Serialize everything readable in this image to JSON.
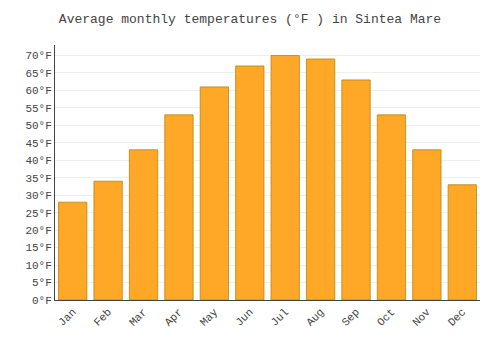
{
  "chart_data": {
    "type": "bar",
    "title": "Average monthly temperatures (°F ) in Sintea Mare",
    "categories": [
      "Jan",
      "Feb",
      "Mar",
      "Apr",
      "May",
      "Jun",
      "Jul",
      "Aug",
      "Sep",
      "Oct",
      "Nov",
      "Dec"
    ],
    "values": [
      28,
      34,
      43,
      53,
      61,
      67,
      70,
      69,
      63,
      53,
      43,
      33
    ],
    "color": "#FFA726",
    "ylim": [
      0,
      73
    ],
    "yticks": [
      {
        "value": 0,
        "label": "0°F"
      },
      {
        "value": 5,
        "label": "5°F"
      },
      {
        "value": 10,
        "label": "10°F"
      },
      {
        "value": 15,
        "label": "15°F"
      },
      {
        "value": 20,
        "label": "20°F"
      },
      {
        "value": 25,
        "label": "25°F"
      },
      {
        "value": 30,
        "label": "30°F"
      },
      {
        "value": 35,
        "label": "35°F"
      },
      {
        "value": 40,
        "label": "40°F"
      },
      {
        "value": 45,
        "label": "45°F"
      },
      {
        "value": 50,
        "label": "50°F"
      },
      {
        "value": 55,
        "label": "55°F"
      },
      {
        "value": 60,
        "label": "60°F"
      },
      {
        "value": 65,
        "label": "65°F"
      },
      {
        "value": 70,
        "label": "70°F"
      }
    ],
    "grid": true
  }
}
